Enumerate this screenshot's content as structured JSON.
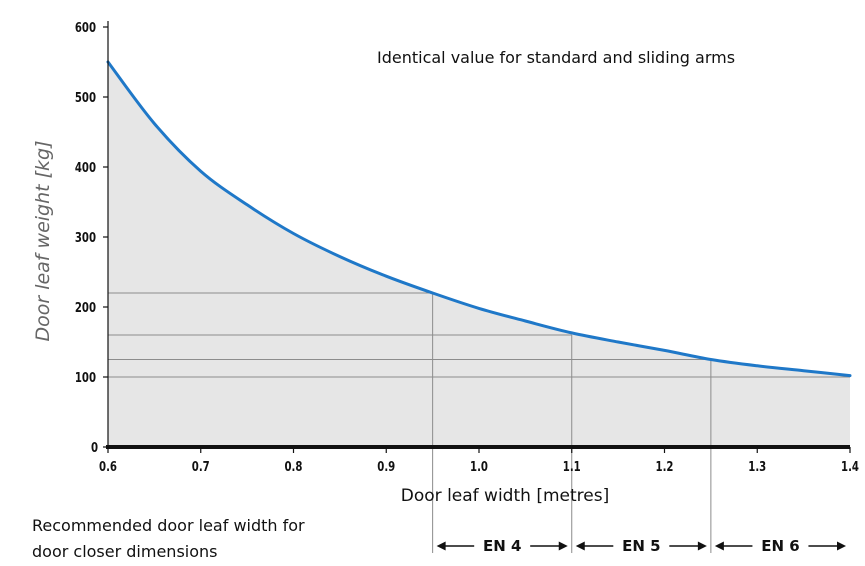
{
  "chart_data": {
    "type": "area",
    "title": "",
    "xlabel": "Door leaf width [metres]",
    "ylabel": "Door leaf weight [kg]",
    "xlim": [
      0.6,
      1.4
    ],
    "ylim": [
      0,
      600
    ],
    "x_ticks": [
      "0.6",
      "0.7",
      "0.8",
      "0.9",
      "1.0",
      "1.1",
      "1.2",
      "1.3",
      "1.4"
    ],
    "y_ticks": [
      "0",
      "100",
      "200",
      "300",
      "400",
      "500",
      "600"
    ],
    "series": [
      {
        "color": "#1f78c8",
        "x": [
          0.6,
          0.65,
          0.7,
          0.75,
          0.8,
          0.85,
          0.9,
          0.95,
          1.0,
          1.05,
          1.1,
          1.15,
          1.2,
          1.25,
          1.3,
          1.35,
          1.4
        ],
        "values": [
          550,
          462,
          394,
          346,
          305,
          272,
          244,
          220,
          198,
          180,
          163,
          150,
          138,
          125,
          116,
          109,
          102
        ]
      }
    ],
    "fill_color": "#e6e6e6",
    "reference_lines": [
      {
        "x": 0.95,
        "y": 220
      },
      {
        "x": 1.1,
        "y": 160
      },
      {
        "x": 1.25,
        "y": 125
      },
      {
        "y": 100
      }
    ],
    "annotation": "Identical value for standard and sliding arms",
    "classes": {
      "caption": [
        "Recommended door leaf width for",
        "door closer dimensions"
      ],
      "ranges": [
        {
          "label": "EN 4",
          "from": 0.95,
          "to": 1.1
        },
        {
          "label": "EN 5",
          "from": 1.1,
          "to": 1.25
        },
        {
          "label": "EN 6",
          "from": 1.25,
          "to": 1.4
        }
      ]
    },
    "grid": false
  }
}
